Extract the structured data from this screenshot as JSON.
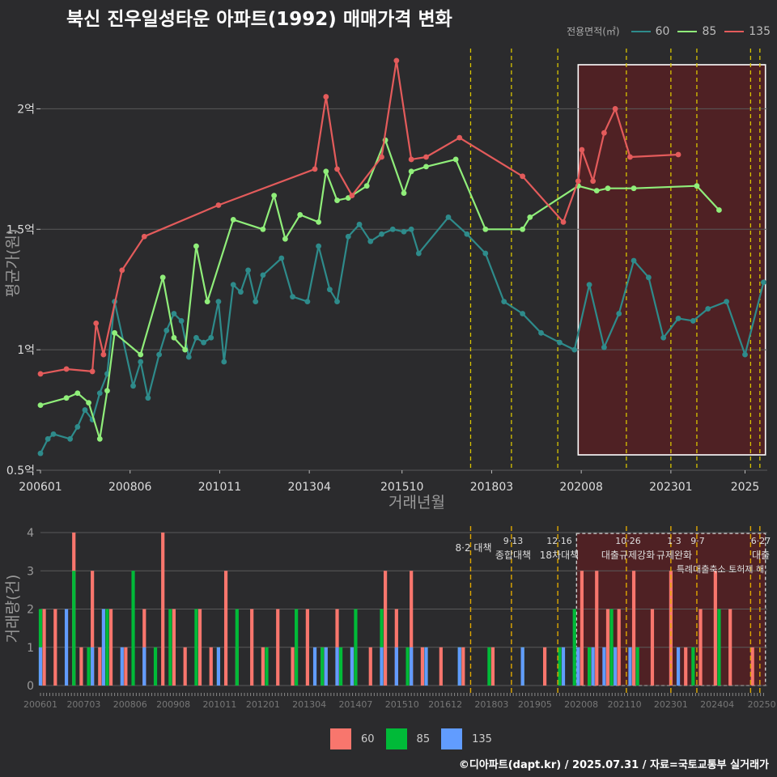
{
  "title": "북신 진우일성타운 아파트(1992) 매매가격 변화",
  "legend": {
    "title": "전용면적(㎡)",
    "items": [
      {
        "label": "60",
        "color": "#2e8b8b"
      },
      {
        "label": "85",
        "color": "#90ee7a"
      },
      {
        "label": "135",
        "color": "#e35b5b"
      }
    ]
  },
  "bar_legend": {
    "items": [
      {
        "label": "60",
        "color": "#f8766d"
      },
      {
        "label": "85",
        "color": "#00ba38"
      },
      {
        "label": "135",
        "color": "#619cff"
      }
    ]
  },
  "caption": "©디아파트(dapt.kr) / 2025.07.31 / 자료=국토교통부 실거래가",
  "chart_data": [
    {
      "type": "line",
      "title": "북신 진우일성타운 아파트(1992) 매매가격 변화",
      "xlabel": "거래년월",
      "ylabel": "평균가(원)",
      "ylim": [
        0.5,
        2.25
      ],
      "x_ticks": [
        "200601",
        "200806",
        "201011",
        "201304",
        "201510",
        "201803",
        "202008",
        "202301",
        "2025"
      ],
      "y_ticks": [
        "0.5억",
        "1억",
        "1.5억",
        "2억"
      ],
      "grid": true,
      "legend_position": "top-right",
      "series": [
        {
          "name": "60",
          "color": "#2e8b8b",
          "x": [
            2006.0,
            2006.2,
            2006.35,
            2006.8,
            2007.0,
            2007.2,
            2007.4,
            2007.6,
            2007.8,
            2008.0,
            2008.5,
            2008.7,
            2008.9,
            2009.2,
            2009.4,
            2009.6,
            2009.8,
            2010.0,
            2010.2,
            2010.4,
            2010.6,
            2010.8,
            2010.95,
            2011.2,
            2011.4,
            2011.6,
            2011.8,
            2012.0,
            2012.5,
            2012.8,
            2013.2,
            2013.5,
            2013.8,
            2014.0,
            2014.3,
            2014.6,
            2014.9,
            2015.2,
            2015.5,
            2015.8,
            2016.0,
            2016.2,
            2017.0,
            2017.5,
            2018.0,
            2018.5,
            2019.0,
            2019.5,
            2020.0,
            2020.4,
            2020.8,
            2021.2,
            2021.6,
            2022.0,
            2022.4,
            2022.8,
            2023.2,
            2023.6,
            2024.0,
            2024.5,
            2025.0,
            2025.5
          ],
          "values": [
            0.57,
            0.63,
            0.65,
            0.63,
            0.68,
            0.75,
            0.71,
            0.82,
            0.9,
            1.2,
            0.85,
            0.95,
            0.8,
            0.98,
            1.08,
            1.15,
            1.12,
            0.97,
            1.05,
            1.03,
            1.05,
            1.2,
            0.95,
            1.27,
            1.24,
            1.33,
            1.2,
            1.31,
            1.38,
            1.22,
            1.2,
            1.43,
            1.25,
            1.2,
            1.47,
            1.52,
            1.45,
            1.48,
            1.5,
            1.49,
            1.5,
            1.4,
            1.55,
            1.48,
            1.4,
            1.2,
            1.15,
            1.07,
            1.03,
            1.0,
            1.27,
            1.01,
            1.15,
            1.37,
            1.3,
            1.05,
            1.13,
            1.12,
            1.17,
            1.2,
            0.98,
            1.28
          ]
        },
        {
          "name": "85",
          "color": "#90ee7a",
          "x": [
            2006.0,
            2006.7,
            2007.0,
            2007.3,
            2007.6,
            2007.8,
            2008.0,
            2008.7,
            2009.3,
            2009.6,
            2009.9,
            2010.2,
            2010.5,
            2011.2,
            2012.0,
            2012.3,
            2012.6,
            2013.0,
            2013.5,
            2013.7,
            2014.0,
            2014.3,
            2014.8,
            2015.3,
            2015.8,
            2016.0,
            2016.4,
            2017.2,
            2018.0,
            2019.0,
            2019.2,
            2020.5,
            2021.0,
            2021.3,
            2022.0,
            2023.7,
            2024.3
          ],
          "values": [
            0.77,
            0.8,
            0.82,
            0.78,
            0.63,
            0.83,
            1.07,
            0.98,
            1.3,
            1.05,
            1.0,
            1.43,
            1.2,
            1.54,
            1.5,
            1.64,
            1.46,
            1.56,
            1.53,
            1.74,
            1.62,
            1.63,
            1.68,
            1.87,
            1.65,
            1.74,
            1.76,
            1.79,
            1.5,
            1.5,
            1.55,
            1.68,
            1.66,
            1.67,
            1.67,
            1.68,
            1.58
          ]
        },
        {
          "name": "135",
          "color": "#e35b5b",
          "x": [
            2006.0,
            2006.7,
            2007.4,
            2007.5,
            2007.7,
            2008.2,
            2008.8,
            2010.8,
            2013.4,
            2013.7,
            2014.0,
            2014.4,
            2015.2,
            2015.6,
            2016.0,
            2016.4,
            2017.3,
            2019.0,
            2020.1,
            2020.5,
            2020.6,
            2020.9,
            2021.2,
            2021.5,
            2021.9,
            2023.2
          ],
          "values": [
            0.9,
            0.92,
            0.91,
            1.11,
            0.98,
            1.33,
            1.47,
            1.6,
            1.75,
            2.05,
            1.75,
            1.64,
            1.8,
            2.2,
            1.79,
            1.8,
            1.88,
            1.72,
            1.53,
            1.7,
            1.83,
            1.7,
            1.9,
            2.0,
            1.8,
            1.81
          ]
        }
      ]
    },
    {
      "type": "bar",
      "ylabel": "거래량(건)",
      "ylim": [
        0,
        4
      ],
      "y_ticks": [
        "0",
        "1",
        "2",
        "3",
        "4"
      ],
      "x_ticks": [
        "200601",
        "200703",
        "200806",
        "200908",
        "201011",
        "201201",
        "201304",
        "201407",
        "201510",
        "201612",
        "201803",
        "201905",
        "202008",
        "202110",
        "202301",
        "202404",
        "20250"
      ],
      "grid": true,
      "legend_position": "bottom",
      "series": [
        {
          "name": "60",
          "color": "#f8766d",
          "x": [
            2006.1,
            2006.4,
            2006.9,
            2007.1,
            2007.4,
            2007.6,
            2007.9,
            2008.3,
            2008.8,
            2009.3,
            2009.6,
            2009.9,
            2010.3,
            2010.6,
            2011.0,
            2011.3,
            2011.7,
            2012.0,
            2012.4,
            2012.8,
            2013.2,
            2013.6,
            2014.0,
            2014.5,
            2014.9,
            2015.3,
            2015.6,
            2016.0,
            2016.3,
            2016.8,
            2017.4,
            2018.2,
            2019.0,
            2019.6,
            2020.6,
            2021.0,
            2021.3,
            2021.6,
            2022.0,
            2022.5,
            2023.0,
            2023.4,
            2023.8,
            2024.2,
            2024.6,
            2025.2
          ],
          "values": [
            2,
            2,
            4,
            1,
            3,
            1,
            2,
            1,
            2,
            4,
            2,
            1,
            2,
            1,
            3,
            1,
            2,
            1,
            2,
            1,
            2,
            1,
            2,
            1,
            1,
            3,
            2,
            3,
            1,
            1,
            1,
            1,
            1,
            1,
            3,
            3,
            2,
            2,
            3,
            2,
            3,
            1,
            2,
            3,
            2,
            1
          ]
        },
        {
          "name": "85",
          "color": "#00ba38",
          "x": [
            2006.0,
            2006.9,
            2007.3,
            2007.8,
            2008.5,
            2009.1,
            2009.5,
            2010.2,
            2010.8,
            2011.3,
            2012.1,
            2012.9,
            2013.6,
            2014.1,
            2014.5,
            2015.2,
            2015.9,
            2016.4,
            2017.3,
            2018.1,
            2019.0,
            2020.0,
            2020.4,
            2020.8,
            2021.4,
            2022.1,
            2023.6,
            2024.3
          ],
          "values": [
            2,
            3,
            1,
            2,
            3,
            1,
            2,
            2,
            1,
            2,
            1,
            2,
            1,
            1,
            2,
            2,
            1,
            1,
            1,
            1,
            1,
            1,
            2,
            1,
            2,
            1,
            1,
            2
          ]
        },
        {
          "name": "135",
          "color": "#619cff",
          "x": [
            2006.0,
            2006.7,
            2007.4,
            2007.7,
            2008.2,
            2008.8,
            2010.8,
            2013.4,
            2013.7,
            2014.0,
            2014.4,
            2015.2,
            2015.6,
            2016.0,
            2016.4,
            2017.3,
            2019.0,
            2020.1,
            2020.5,
            2020.9,
            2021.2,
            2021.5,
            2021.9,
            2023.2
          ],
          "values": [
            1,
            2,
            1,
            2,
            1,
            1,
            1,
            1,
            1,
            1,
            1,
            1,
            1,
            1,
            1,
            1,
            1,
            1,
            1,
            1,
            1,
            1,
            1,
            1
          ]
        }
      ]
    }
  ],
  "policy_annotations": [
    {
      "label": "8·2 대책",
      "x": 2017.6
    },
    {
      "label": "9·13 종합대책",
      "x": 2018.7
    },
    {
      "label": "12·16 18차대책",
      "x": 2019.95
    },
    {
      "label": "10·26 대출규제강화",
      "x": 2021.8
    },
    {
      "label": "1·3 규제완화",
      "x": 2023.0
    },
    {
      "label": "9·7 특례대출축소 토허제 해",
      "x": 2023.7
    },
    {
      "label": "6·27 대출",
      "x": 2025.4
    }
  ],
  "highlight_range": {
    "x_start": 2020.5,
    "x_end": 2025.55
  }
}
